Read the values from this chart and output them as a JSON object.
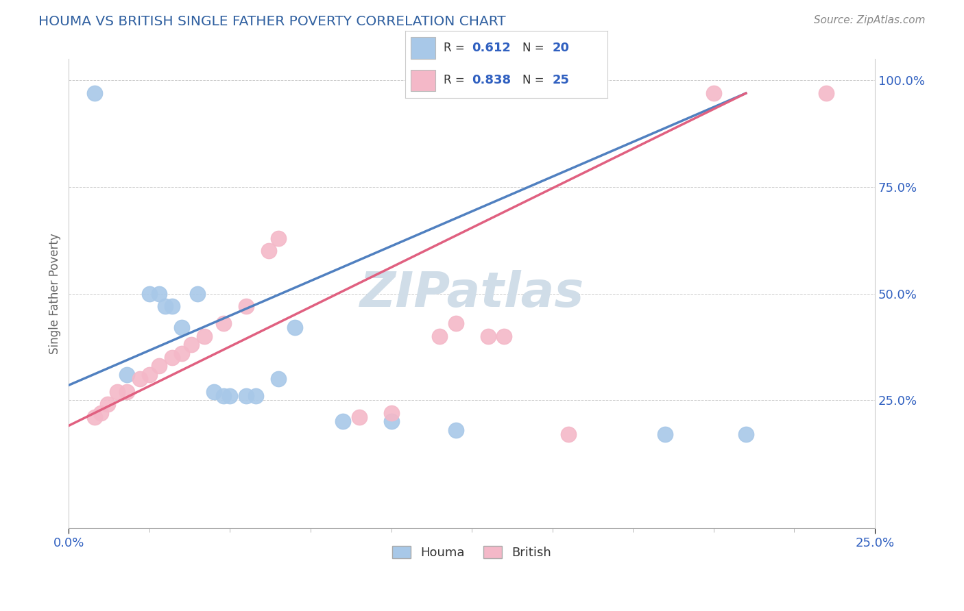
{
  "title": "HOUMA VS BRITISH SINGLE FATHER POVERTY CORRELATION CHART",
  "source": "Source: ZipAtlas.com",
  "ylabel": "Single Father Poverty",
  "xlim": [
    0.0,
    0.25
  ],
  "ylim": [
    -0.05,
    1.05
  ],
  "houma_R": 0.612,
  "houma_N": 20,
  "british_R": 0.838,
  "british_N": 25,
  "houma_color": "#a8c8e8",
  "british_color": "#f4b8c8",
  "houma_line_color": "#5080c0",
  "british_line_color": "#e06080",
  "houma_scatter": [
    [
      0.008,
      0.97
    ],
    [
      0.018,
      0.31
    ],
    [
      0.025,
      0.5
    ],
    [
      0.028,
      0.5
    ],
    [
      0.03,
      0.47
    ],
    [
      0.032,
      0.47
    ],
    [
      0.035,
      0.42
    ],
    [
      0.04,
      0.5
    ],
    [
      0.045,
      0.27
    ],
    [
      0.048,
      0.26
    ],
    [
      0.05,
      0.26
    ],
    [
      0.055,
      0.26
    ],
    [
      0.058,
      0.26
    ],
    [
      0.065,
      0.3
    ],
    [
      0.07,
      0.42
    ],
    [
      0.085,
      0.2
    ],
    [
      0.1,
      0.2
    ],
    [
      0.12,
      0.18
    ],
    [
      0.185,
      0.17
    ],
    [
      0.21,
      0.17
    ]
  ],
  "british_scatter": [
    [
      0.008,
      0.21
    ],
    [
      0.01,
      0.22
    ],
    [
      0.012,
      0.24
    ],
    [
      0.015,
      0.27
    ],
    [
      0.018,
      0.27
    ],
    [
      0.022,
      0.3
    ],
    [
      0.025,
      0.31
    ],
    [
      0.028,
      0.33
    ],
    [
      0.032,
      0.35
    ],
    [
      0.035,
      0.36
    ],
    [
      0.038,
      0.38
    ],
    [
      0.042,
      0.4
    ],
    [
      0.048,
      0.43
    ],
    [
      0.055,
      0.47
    ],
    [
      0.062,
      0.6
    ],
    [
      0.065,
      0.63
    ],
    [
      0.09,
      0.21
    ],
    [
      0.1,
      0.22
    ],
    [
      0.115,
      0.4
    ],
    [
      0.12,
      0.43
    ],
    [
      0.13,
      0.4
    ],
    [
      0.135,
      0.4
    ],
    [
      0.155,
      0.17
    ],
    [
      0.2,
      0.97
    ],
    [
      0.235,
      0.97
    ]
  ],
  "background_color": "#ffffff",
  "title_color": "#3060a0",
  "source_color": "#888888",
  "legend_label_color": "#3060c0",
  "grid_color": "#cccccc",
  "houma_line_x0": 0.0,
  "houma_line_y0": 0.285,
  "houma_line_x1": 0.21,
  "houma_line_y1": 0.97,
  "british_line_x0": 0.0,
  "british_line_y0": 0.19,
  "british_line_x1": 0.21,
  "british_line_y1": 0.97
}
